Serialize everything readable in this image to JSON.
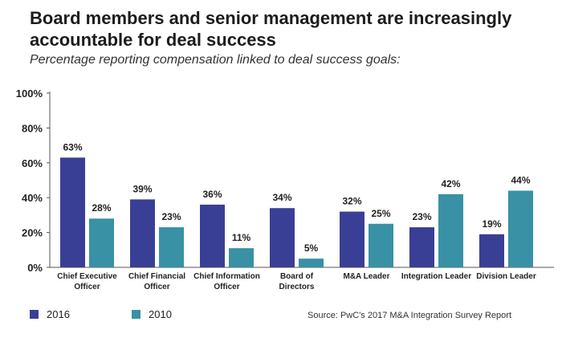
{
  "title": "Board members and senior management are increasingly accountable for deal success",
  "subtitle": "Percentage reporting compensation linked to deal success goals:",
  "source": "Source: PwC's 2017 M&A Integration Survey Report",
  "colors": {
    "2016": "#3a3f96",
    "2010": "#3891a4"
  },
  "chart_data": {
    "type": "bar",
    "categories": [
      [
        "Chief Executive",
        "Officer"
      ],
      [
        "Chief Financial",
        "Officer"
      ],
      [
        "Chief Information",
        "Officer"
      ],
      [
        "Board of",
        "Directors"
      ],
      [
        "M&A Leader"
      ],
      [
        "Integration Leader"
      ],
      [
        "Division Leader"
      ]
    ],
    "series": [
      {
        "name": "2016",
        "values": [
          63,
          39,
          36,
          34,
          32,
          23,
          19
        ],
        "labels": [
          "63%",
          "39%",
          "36%",
          "34%",
          "32%",
          "23%",
          "19%"
        ]
      },
      {
        "name": "2010",
        "values": [
          28,
          23,
          11,
          5,
          25,
          42,
          44
        ],
        "labels": [
          "28%",
          "23%",
          "11%",
          "5%",
          "25%",
          "42%",
          "44%"
        ]
      }
    ],
    "ylim": [
      0,
      100
    ],
    "yticks": [
      "0%",
      "20%",
      "40%",
      "60%",
      "80%",
      "100%"
    ],
    "grid": false,
    "legend": "bottom-left"
  }
}
